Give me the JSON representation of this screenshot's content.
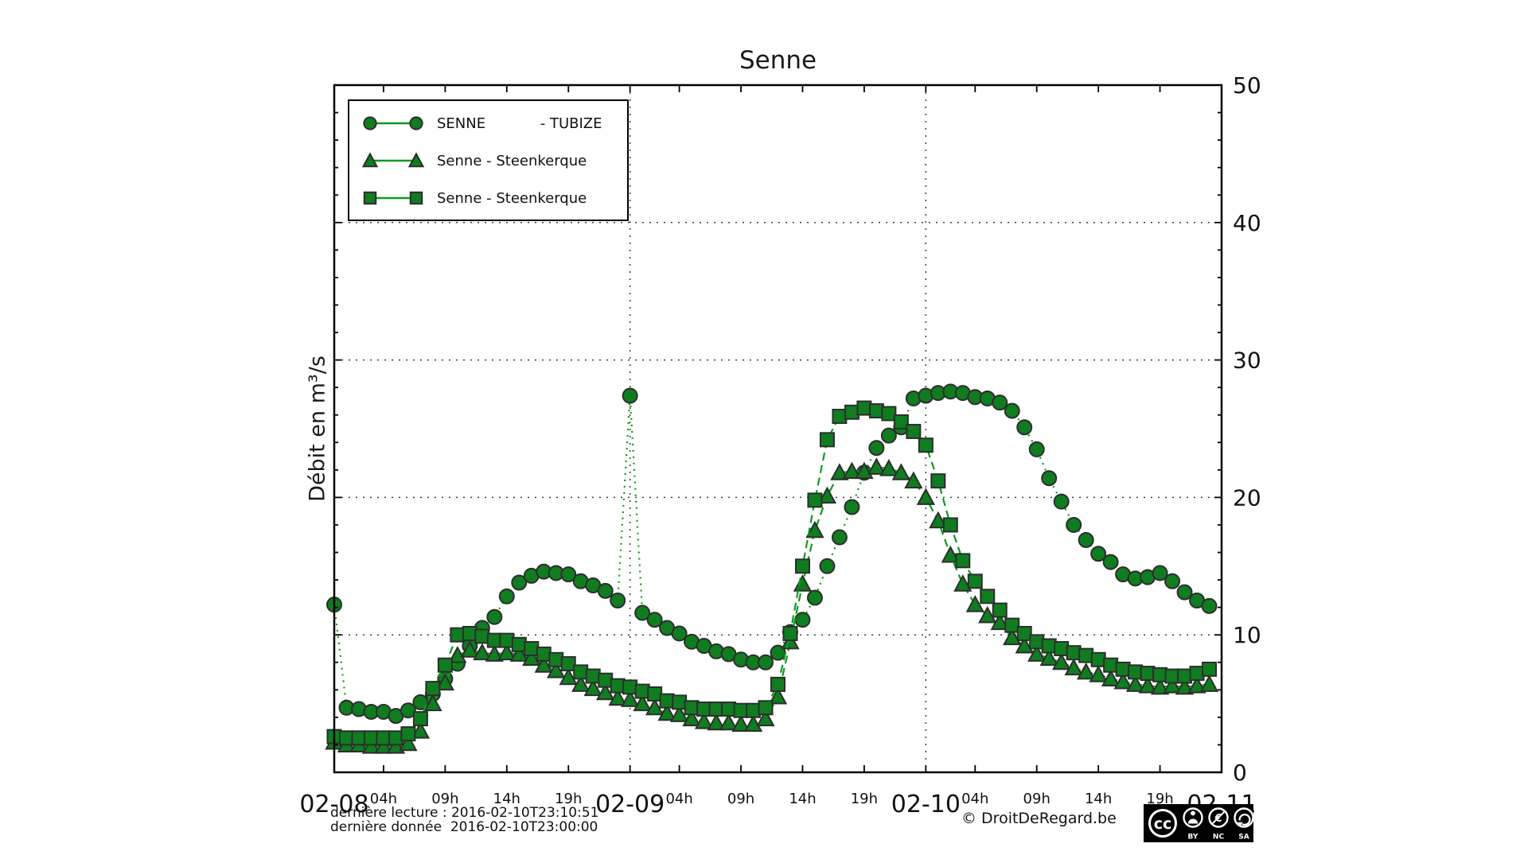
{
  "title": "Senne",
  "y_axis_label": "Débit en m³/s",
  "footer": {
    "last_reading": "dernière lecture : 2016-02-10T23:10:51",
    "last_data": "dernière donnée  2016-02-10T23:00:00"
  },
  "copyright": "© DroitDeRegard.be",
  "license_badge": {
    "cc": "cc",
    "labels": [
      "BY",
      "NC",
      "SA"
    ]
  },
  "colors": {
    "background": "#ffffff",
    "axis": "#000000",
    "grid": "#3c3c3c",
    "line": "#0c9a1e",
    "marker_fill": "#0f7d1f",
    "marker_edge": "#2d2d2d"
  },
  "chart_data": {
    "type": "line",
    "title": "Senne",
    "xlabel": "",
    "ylabel": "Débit en m³/s",
    "ylim": [
      0,
      50
    ],
    "x_range": [
      0,
      72
    ],
    "x_unit": "hours since 2016-02-08 00:00",
    "grid": "dotted",
    "grid_y": [
      10,
      20,
      30,
      40
    ],
    "grid_x": [
      24,
      48
    ],
    "y_ticks": [
      0,
      10,
      20,
      30,
      40,
      50
    ],
    "x_ticks": [
      {
        "t": 0,
        "label": "02-08",
        "kind": "day"
      },
      {
        "t": 4,
        "label": "04h",
        "kind": "hour"
      },
      {
        "t": 9,
        "label": "09h",
        "kind": "hour"
      },
      {
        "t": 14,
        "label": "14h",
        "kind": "hour"
      },
      {
        "t": 19,
        "label": "19h",
        "kind": "hour"
      },
      {
        "t": 24,
        "label": "02-09",
        "kind": "day"
      },
      {
        "t": 28,
        "label": "04h",
        "kind": "hour"
      },
      {
        "t": 33,
        "label": "09h",
        "kind": "hour"
      },
      {
        "t": 38,
        "label": "14h",
        "kind": "hour"
      },
      {
        "t": 43,
        "label": "19h",
        "kind": "hour"
      },
      {
        "t": 48,
        "label": "02-10",
        "kind": "day"
      },
      {
        "t": 52,
        "label": "04h",
        "kind": "hour"
      },
      {
        "t": 57,
        "label": "09h",
        "kind": "hour"
      },
      {
        "t": 62,
        "label": "14h",
        "kind": "hour"
      },
      {
        "t": 67,
        "label": "19h",
        "kind": "hour"
      },
      {
        "t": 72,
        "label": "02-11",
        "kind": "day"
      }
    ],
    "series": [
      {
        "id": "senne-tubize",
        "label": "SENNE            - TUBIZE",
        "marker": "circle",
        "linestyle": "dotted",
        "dash": "2 6",
        "values": [
          12.2,
          4.7,
          4.6,
          4.4,
          4.4,
          4.1,
          4.5,
          5.1,
          5.7,
          6.8,
          7.9,
          9.2,
          10.5,
          11.3,
          12.8,
          13.8,
          14.3,
          14.6,
          14.5,
          14.4,
          13.9,
          13.6,
          13.2,
          12.5,
          27.4,
          11.6,
          11.1,
          10.5,
          10.1,
          9.5,
          9.2,
          8.8,
          8.6,
          8.2,
          8.0,
          8.0,
          8.7,
          10.2,
          11.1,
          12.7,
          15.0,
          17.1,
          19.3,
          21.8,
          23.6,
          24.5,
          25.1,
          27.2,
          27.4,
          27.6,
          27.7,
          27.6,
          27.3,
          27.2,
          26.9,
          26.3,
          25.1,
          23.5,
          21.4,
          19.7,
          18.0,
          16.9,
          15.9,
          15.3,
          14.4,
          14.1,
          14.2,
          14.5,
          13.9,
          13.1,
          12.5,
          12.1
        ]
      },
      {
        "id": "senne-steenkerque-1",
        "label": "Senne - Steenkerque",
        "marker": "triangle",
        "linestyle": "dashed",
        "dash": "10 6",
        "values": [
          2.2,
          2.0,
          2.0,
          1.9,
          1.9,
          1.9,
          2.1,
          3.0,
          5.0,
          6.5,
          8.5,
          8.9,
          8.7,
          8.6,
          8.7,
          8.6,
          8.3,
          7.8,
          7.4,
          6.9,
          6.4,
          6.1,
          5.8,
          5.4,
          5.3,
          5.0,
          4.7,
          4.3,
          4.2,
          3.9,
          3.7,
          3.6,
          3.6,
          3.5,
          3.5,
          3.9,
          5.5,
          9.5,
          13.7,
          17.6,
          20.1,
          21.8,
          21.9,
          21.9,
          22.2,
          22.1,
          21.8,
          21.2,
          20.0,
          18.3,
          15.8,
          13.7,
          12.2,
          11.4,
          10.9,
          9.8,
          9.2,
          8.6,
          8.3,
          8.0,
          7.6,
          7.3,
          7.1,
          6.8,
          6.6,
          6.4,
          6.3,
          6.2,
          6.3,
          6.2,
          6.3,
          6.4
        ]
      },
      {
        "id": "senne-steenkerque-2",
        "label": "Senne - Steenkerque",
        "marker": "square",
        "linestyle": "dashed",
        "dash": "10 6",
        "values": [
          2.6,
          2.5,
          2.5,
          2.5,
          2.5,
          2.5,
          2.8,
          3.9,
          6.1,
          7.8,
          10.0,
          10.1,
          9.9,
          9.6,
          9.6,
          9.3,
          9.0,
          8.6,
          8.2,
          7.9,
          7.3,
          7.0,
          6.7,
          6.3,
          6.2,
          5.9,
          5.7,
          5.2,
          5.1,
          4.7,
          4.6,
          4.6,
          4.6,
          4.5,
          4.5,
          4.7,
          6.4,
          10.1,
          15.0,
          19.8,
          24.2,
          25.9,
          26.2,
          26.5,
          26.3,
          26.1,
          25.5,
          24.8,
          23.8,
          21.2,
          18.0,
          15.4,
          13.9,
          12.8,
          11.8,
          10.7,
          10.1,
          9.5,
          9.2,
          9.0,
          8.7,
          8.5,
          8.2,
          7.8,
          7.5,
          7.3,
          7.2,
          7.1,
          7.0,
          7.0,
          7.2,
          7.5
        ]
      }
    ]
  }
}
